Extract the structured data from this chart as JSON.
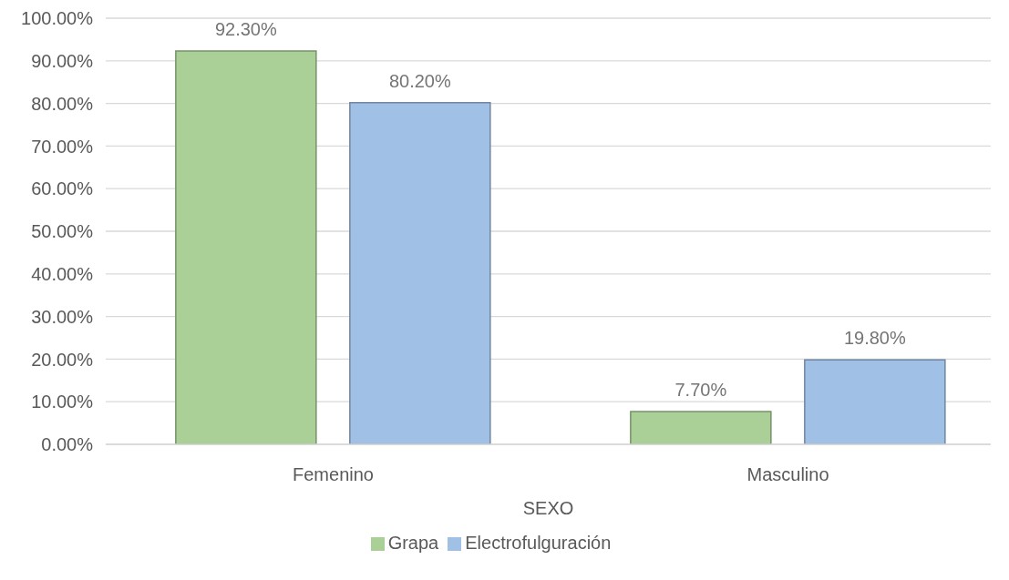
{
  "chart_data": {
    "type": "bar",
    "xlabel": "SEXO",
    "categories": [
      "Femenino",
      "Masculino"
    ],
    "series": [
      {
        "name": "Grapa",
        "color": "#aad098",
        "values": [
          92.3,
          7.7
        ],
        "value_labels": [
          "92.30%",
          "7.70%"
        ]
      },
      {
        "name": "Electrofulguración",
        "color": "#a1c0e5",
        "values": [
          80.2,
          19.8
        ],
        "value_labels": [
          "80.20%",
          "19.80%"
        ]
      }
    ],
    "ylim": [
      0,
      100
    ],
    "yticks": [
      {
        "value": 0,
        "label": "0.00%"
      },
      {
        "value": 10,
        "label": "10.00%"
      },
      {
        "value": 20,
        "label": "20.00%"
      },
      {
        "value": 30,
        "label": "30.00%"
      },
      {
        "value": 40,
        "label": "40.00%"
      },
      {
        "value": 50,
        "label": "50.00%"
      },
      {
        "value": 60,
        "label": "60.00%"
      },
      {
        "value": 70,
        "label": "70.00%"
      },
      {
        "value": 80,
        "label": "80.00%"
      },
      {
        "value": 90,
        "label": "90.00%"
      },
      {
        "value": 100,
        "label": "100.00%"
      }
    ],
    "grid": "y",
    "legend": "bottom"
  }
}
